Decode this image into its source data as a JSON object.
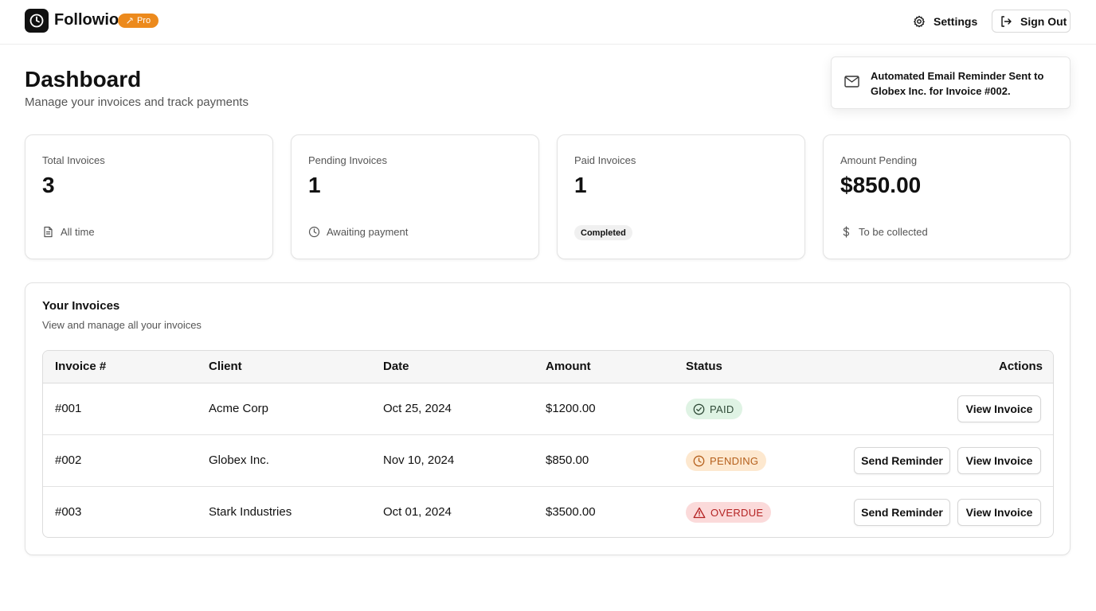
{
  "header": {
    "brand": "Followio",
    "plan_badge": "Pro",
    "settings_label": "Settings",
    "signout_label": "Sign Out"
  },
  "page": {
    "title": "Dashboard",
    "subtitle": "Manage your invoices and track payments"
  },
  "toast": {
    "message": "Automated Email Reminder Sent to Globex Inc. for Invoice #002."
  },
  "stats": [
    {
      "label": "Total Invoices",
      "value": "3",
      "footer": "All time",
      "icon": "document-icon"
    },
    {
      "label": "Pending Invoices",
      "value": "1",
      "footer": "Awaiting payment",
      "icon": "clock-icon"
    },
    {
      "label": "Paid Invoices",
      "value": "1",
      "footer": "Completed"
    },
    {
      "label": "Amount Pending",
      "value": "$850.00",
      "footer": "To be collected",
      "icon": "dollar-icon"
    }
  ],
  "invoices": {
    "title": "Your Invoices",
    "subtitle": "View and manage all your invoices",
    "columns": [
      "Invoice #",
      "Client",
      "Date",
      "Amount",
      "Status",
      "Actions"
    ],
    "rows": [
      {
        "number": "#001",
        "client": "Acme Corp",
        "date": "Oct 25, 2024",
        "amount": "$1200.00",
        "status": "PAID"
      },
      {
        "number": "#002",
        "client": "Globex Inc.",
        "date": "Nov 10, 2024",
        "amount": "$850.00",
        "status": "PENDING"
      },
      {
        "number": "#003",
        "client": "Stark Industries",
        "date": "Oct 01, 2024",
        "amount": "$3500.00",
        "status": "OVERDUE"
      }
    ],
    "send_reminder_label": "Send Reminder",
    "view_invoice_label": "View Invoice"
  },
  "colors": {
    "pro_badge": "#ec8a1d",
    "paid_bg": "#dff3e4",
    "pending_bg": "#fde8cf",
    "pending_text": "#b5601c",
    "overdue_bg": "#fbdada",
    "overdue_text": "#b42323"
  }
}
